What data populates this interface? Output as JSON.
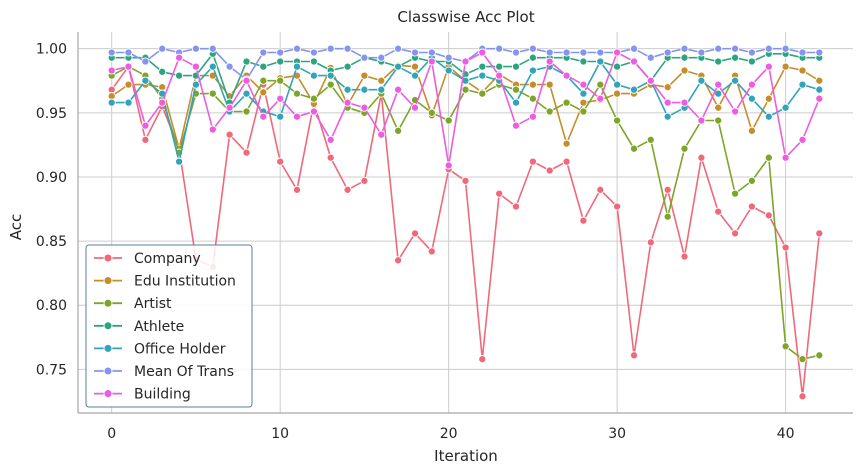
{
  "chart_data": {
    "type": "line",
    "title": "Classwise Acc Plot",
    "xlabel": "Iteration",
    "ylabel": "Acc",
    "xlim": [
      -2,
      44
    ],
    "ylim": [
      0.716,
      1.013
    ],
    "xticks": [
      0,
      10,
      20,
      30,
      40
    ],
    "yticks": [
      0.75,
      0.8,
      0.85,
      0.9,
      0.95,
      1.0
    ],
    "ytick_labels": [
      "0.75",
      "0.80",
      "0.85",
      "0.90",
      "0.95",
      "1.00"
    ],
    "grid": true,
    "legend_position": "lower-left",
    "x": [
      0,
      1,
      2,
      3,
      4,
      5,
      6,
      7,
      8,
      9,
      10,
      11,
      12,
      13,
      14,
      15,
      16,
      17,
      18,
      19,
      20,
      21,
      22,
      23,
      24,
      25,
      26,
      27,
      28,
      29,
      30,
      31,
      32,
      33,
      34,
      35,
      36,
      37,
      38,
      39,
      40,
      41,
      42
    ],
    "series": [
      {
        "name": "Company",
        "color": "#f0697a",
        "values": [
          0.968,
          0.986,
          0.929,
          0.955,
          0.922,
          0.836,
          0.83,
          0.933,
          0.919,
          0.972,
          0.912,
          0.89,
          0.958,
          0.915,
          0.89,
          0.897,
          0.965,
          0.835,
          0.856,
          0.842,
          0.906,
          0.897,
          0.758,
          0.887,
          0.877,
          0.912,
          0.905,
          0.912,
          0.866,
          0.89,
          0.877,
          0.761,
          0.849,
          0.89,
          0.838,
          0.915,
          0.873,
          0.856,
          0.877,
          0.87,
          0.845,
          0.729,
          0.856
        ]
      },
      {
        "name": "Edu Institution",
        "color": "#c58d2c",
        "values": [
          0.963,
          0.972,
          0.972,
          0.97,
          0.922,
          0.979,
          0.979,
          0.963,
          0.979,
          0.966,
          0.977,
          0.979,
          0.957,
          0.985,
          0.956,
          0.979,
          0.975,
          0.987,
          0.986,
          0.948,
          0.986,
          0.975,
          0.966,
          0.98,
          0.972,
          0.972,
          0.972,
          0.926,
          0.958,
          0.96,
          0.965,
          0.965,
          0.972,
          0.97,
          0.983,
          0.979,
          0.954,
          0.979,
          0.936,
          0.961,
          0.986,
          0.983,
          0.975
        ]
      },
      {
        "name": "Artist",
        "color": "#7ca52a",
        "values": [
          0.979,
          0.986,
          0.979,
          0.961,
          0.919,
          0.965,
          0.965,
          0.951,
          0.951,
          0.975,
          0.975,
          0.965,
          0.961,
          0.972,
          0.954,
          0.95,
          0.965,
          0.936,
          0.96,
          0.95,
          0.944,
          0.968,
          0.965,
          0.972,
          0.968,
          0.961,
          0.951,
          0.958,
          0.951,
          0.972,
          0.944,
          0.922,
          0.929,
          0.869,
          0.922,
          0.944,
          0.944,
          0.887,
          0.897,
          0.915,
          0.768,
          0.758,
          0.761
        ]
      },
      {
        "name": "Athlete",
        "color": "#2ca57f",
        "values": [
          0.993,
          0.993,
          0.993,
          0.982,
          0.979,
          0.979,
          0.996,
          0.958,
          0.99,
          0.986,
          0.99,
          0.99,
          0.99,
          0.983,
          0.986,
          0.993,
          0.99,
          0.986,
          0.993,
          0.99,
          0.99,
          0.98,
          0.986,
          0.986,
          0.986,
          0.993,
          0.993,
          0.993,
          0.99,
          0.99,
          0.986,
          0.99,
          0.975,
          0.993,
          0.993,
          0.993,
          0.99,
          0.993,
          0.99,
          0.996,
          0.996,
          0.993,
          0.993
        ]
      },
      {
        "name": "Office Holder",
        "color": "#31a4b9",
        "values": [
          0.958,
          0.958,
          0.975,
          0.965,
          0.912,
          0.972,
          0.986,
          0.951,
          0.965,
          0.951,
          0.947,
          0.986,
          0.979,
          0.979,
          0.968,
          0.968,
          0.968,
          0.986,
          0.979,
          0.993,
          0.983,
          0.975,
          0.979,
          0.975,
          0.958,
          0.983,
          0.986,
          0.979,
          0.965,
          0.99,
          0.972,
          0.968,
          0.975,
          0.947,
          0.954,
          0.975,
          0.965,
          0.975,
          0.961,
          0.947,
          0.954,
          0.972,
          0.968
        ]
      },
      {
        "name": "Mean Of Trans",
        "color": "#8595ef",
        "values": [
          0.997,
          0.997,
          0.99,
          1.0,
          0.997,
          1.0,
          1.0,
          0.986,
          0.976,
          0.997,
          0.997,
          1.0,
          0.997,
          1.0,
          1.0,
          0.993,
          0.993,
          1.0,
          0.997,
          0.997,
          0.993,
          0.99,
          1.0,
          1.0,
          0.997,
          1.0,
          0.997,
          0.997,
          0.997,
          0.997,
          0.997,
          1.0,
          0.993,
          0.997,
          1.0,
          0.997,
          1.0,
          1.0,
          0.997,
          1.0,
          1.0,
          0.997,
          0.997
        ]
      },
      {
        "name": "Building",
        "color": "#ee5ce0",
        "values": [
          0.983,
          0.986,
          0.94,
          0.958,
          0.993,
          0.986,
          0.937,
          0.954,
          0.975,
          0.947,
          0.961,
          0.947,
          0.951,
          0.929,
          0.958,
          0.954,
          0.933,
          0.968,
          0.954,
          0.99,
          0.909,
          0.99,
          0.997,
          0.979,
          0.94,
          0.947,
          0.99,
          0.979,
          0.972,
          0.961,
          0.997,
          0.99,
          0.975,
          0.958,
          0.958,
          0.944,
          0.972,
          0.951,
          0.972,
          0.986,
          0.915,
          0.929,
          0.961
        ]
      }
    ]
  }
}
